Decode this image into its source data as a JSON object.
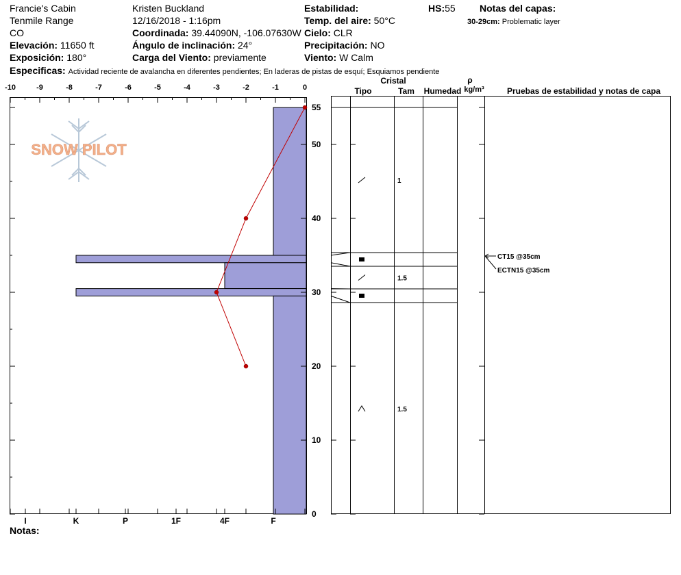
{
  "header": {
    "location": "Francie's Cabin",
    "range": "Tenmile Range",
    "state": "CO",
    "elevation": {
      "label": "Elevación:",
      "value": "11650 ft"
    },
    "aspect": {
      "label": "Exposición:",
      "value": "180°"
    },
    "observer": "Kristen Buckland",
    "datetime": "12/16/2018 - 1:16pm",
    "coordinates": {
      "label": "Coordinada:",
      "value": "39.44090N, -106.07630W"
    },
    "slope": {
      "label": "Ángulo de inclinación:",
      "value": "24°"
    },
    "wind_loading": {
      "label": "Carga del Viento:",
      "value": "previamente"
    },
    "stability": {
      "label": "Estabilidad:",
      "value": ""
    },
    "air_temp": {
      "label": "Temp. del aire:",
      "value": "50°C"
    },
    "sky": {
      "label": "Cielo:",
      "value": "CLR"
    },
    "precip": {
      "label": "Precipitación:",
      "value": "NO"
    },
    "wind": {
      "label": "Viento:",
      "value": "W Calm"
    },
    "hs": {
      "label": "HS:",
      "value": "55"
    },
    "layer_notes_title": "Notas del capas:",
    "layer_note": {
      "label": "30-29cm:",
      "value": "Problematic layer"
    },
    "specifics": {
      "label": "Especificas:",
      "value": "Actividad reciente de avalancha en diferentes pendientes;  En laderas de pistas de esquí; Esquiamos pendiente"
    }
  },
  "logo": {
    "text": "SNOW PILOT"
  },
  "notes_label": "Notas:",
  "right_headers": {
    "cristal": "Cristal",
    "tipo": "Tipo",
    "tam": "Tam",
    "humedad": "Humedad",
    "rho": "ρ",
    "density_unit": "kg/m³",
    "tests": "Pruebas de estabilidad y notas de capa"
  },
  "tests": [
    "CT15 @35cm",
    "ECTN15 @35cm"
  ],
  "colors": {
    "fill": "#9e9ed8",
    "temp": "#c00000",
    "logo": "#f3b089"
  },
  "chart_data": {
    "type": "snow-profile",
    "temp_axis": {
      "ticks": [
        "-10",
        "-9",
        "-8",
        "-7",
        "-6",
        "-5",
        "-4",
        "-3",
        "-2",
        "-1",
        "0"
      ],
      "range": [
        -10,
        0
      ]
    },
    "height_axis": {
      "ticks": [
        "0",
        "10",
        "20",
        "30",
        "40",
        "50",
        "55"
      ],
      "range": [
        0,
        55
      ]
    },
    "hardness_axis": {
      "ticks": [
        "I",
        "K",
        "P",
        "1F",
        "4F",
        "F"
      ]
    },
    "hardness_layers": [
      {
        "top": 55,
        "bottom": 35,
        "hardness": "F"
      },
      {
        "top": 35,
        "bottom": 34,
        "hardness": "K"
      },
      {
        "top": 34,
        "bottom": 30.5,
        "hardness": "4F"
      },
      {
        "top": 30.5,
        "bottom": 29.5,
        "hardness": "K"
      },
      {
        "top": 29.5,
        "bottom": 0,
        "hardness": "F"
      }
    ],
    "temperature_profile": [
      {
        "depth": 55,
        "temp": 0
      },
      {
        "depth": 40,
        "temp": -2
      },
      {
        "depth": 30,
        "temp": -3
      },
      {
        "depth": 20,
        "temp": -2
      }
    ],
    "crystal_rows": [
      {
        "top": 55,
        "bottom": 35,
        "symbol": "decomposing",
        "size": "1"
      },
      {
        "top": 35,
        "bottom": 34,
        "symbol": "ice",
        "size": ""
      },
      {
        "top": 34,
        "bottom": 30.5,
        "symbol": "decomposing",
        "size": "1.5"
      },
      {
        "top": 30.5,
        "bottom": 29.5,
        "symbol": "ice",
        "size": ""
      },
      {
        "top": 29.5,
        "bottom": 0,
        "symbol": "depth-hoar",
        "size": "1.5"
      }
    ]
  }
}
